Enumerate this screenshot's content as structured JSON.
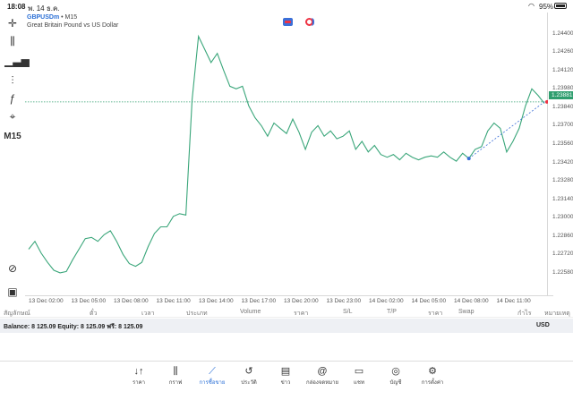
{
  "status": {
    "time": "18:08",
    "date": "พ. 14 ธ.ค.",
    "battery": "95%"
  },
  "chart": {
    "symbol": "GBPUSDm",
    "separator": "•",
    "timeframe": "M15",
    "description": "Great Britain Pound vs US Dollar",
    "current_price": "1.23881",
    "line_color": "#3aa67a"
  },
  "toolbar": {
    "timeframe_label": "M15"
  },
  "chart_data": {
    "type": "line",
    "title": "",
    "xlabel": "",
    "ylabel": "",
    "ylim": [
      1.2245,
      1.2452
    ],
    "y_ticks": [
      "1.24400",
      "1.24260",
      "1.24120",
      "1.23980",
      "1.23840",
      "1.23700",
      "1.23560",
      "1.23420",
      "1.23280",
      "1.23140",
      "1.23000",
      "1.22860",
      "1.22720",
      "1.22580"
    ],
    "x_ticks": [
      "13 Dec 02:00",
      "13 Dec 05:00",
      "13 Dec 08:00",
      "13 Dec 11:00",
      "13 Dec 14:00",
      "13 Dec 17:00",
      "13 Dec 20:00",
      "13 Dec 23:00",
      "14 Dec 02:00",
      "14 Dec 05:00",
      "14 Dec 08:00",
      "14 Dec 11:00"
    ],
    "series": [
      {
        "values": [
          1.2276,
          1.2282,
          1.2273,
          1.2266,
          1.226,
          1.2258,
          1.2259,
          1.2268,
          1.2276,
          1.2284,
          1.2285,
          1.2282,
          1.2287,
          1.229,
          1.2282,
          1.2272,
          1.2265,
          1.2263,
          1.2266,
          1.2278,
          1.2288,
          1.2293,
          1.2293,
          1.2301,
          1.2303,
          1.2302,
          1.239,
          1.2438,
          1.2428,
          1.2418,
          1.2425,
          1.2412,
          1.24,
          1.2398,
          1.24,
          1.2385,
          1.2376,
          1.237,
          1.2362,
          1.2372,
          1.2368,
          1.2364,
          1.2375,
          1.2365,
          1.2352,
          1.2365,
          1.237,
          1.2362,
          1.2366,
          1.236,
          1.2362,
          1.2366,
          1.2352,
          1.2358,
          1.235,
          1.2355,
          1.2348,
          1.2346,
          1.2348,
          1.2344,
          1.2349,
          1.2346,
          1.2344,
          1.2346,
          1.2347,
          1.2346,
          1.235,
          1.2346,
          1.2343,
          1.2349,
          1.2345,
          1.2352,
          1.2354,
          1.2366,
          1.2372,
          1.2368,
          1.235,
          1.2358,
          1.2368,
          1.2385,
          1.2398,
          1.2393,
          1.2387
        ]
      }
    ],
    "legend": "none",
    "grid": false,
    "current_price_line": 1.23881
  },
  "trade_table": {
    "columns": [
      "สัญลักษณ์",
      "ตั๋ว",
      "เวลา",
      "ประเภท",
      "Volume",
      "ราคา",
      "S/L",
      "T/P",
      "ราคา",
      "Swap",
      "กำไร",
      "หมายเหตุ"
    ]
  },
  "balance": {
    "text": "Balance: 8 125.09  Equity: 8 125.09  ฟรี: 8 125.09",
    "currency": "USD"
  },
  "nav": [
    {
      "id": "quotes",
      "label": "ราคา",
      "icon": "arrows-updown-icon",
      "glyph": "↓↑"
    },
    {
      "id": "chart",
      "label": "กราฟ",
      "icon": "candles-icon",
      "glyph": "⫼"
    },
    {
      "id": "trade",
      "label": "การซื้อขาย",
      "icon": "trend-icon",
      "glyph": "⟋"
    },
    {
      "id": "history",
      "label": "ประวัติ",
      "icon": "history-icon",
      "glyph": "↺"
    },
    {
      "id": "news",
      "label": "ข่าว",
      "icon": "news-icon",
      "glyph": "▤"
    },
    {
      "id": "mailbox",
      "label": "กล่องจดหมาย",
      "icon": "at-icon",
      "glyph": "@"
    },
    {
      "id": "chat",
      "label": "แชท",
      "icon": "chat-icon",
      "glyph": "▭"
    },
    {
      "id": "account",
      "label": "บัญชี",
      "icon": "user-icon",
      "glyph": "◎"
    },
    {
      "id": "settings",
      "label": "การตั้งค่า",
      "icon": "gear-icon",
      "glyph": "⚙"
    }
  ]
}
